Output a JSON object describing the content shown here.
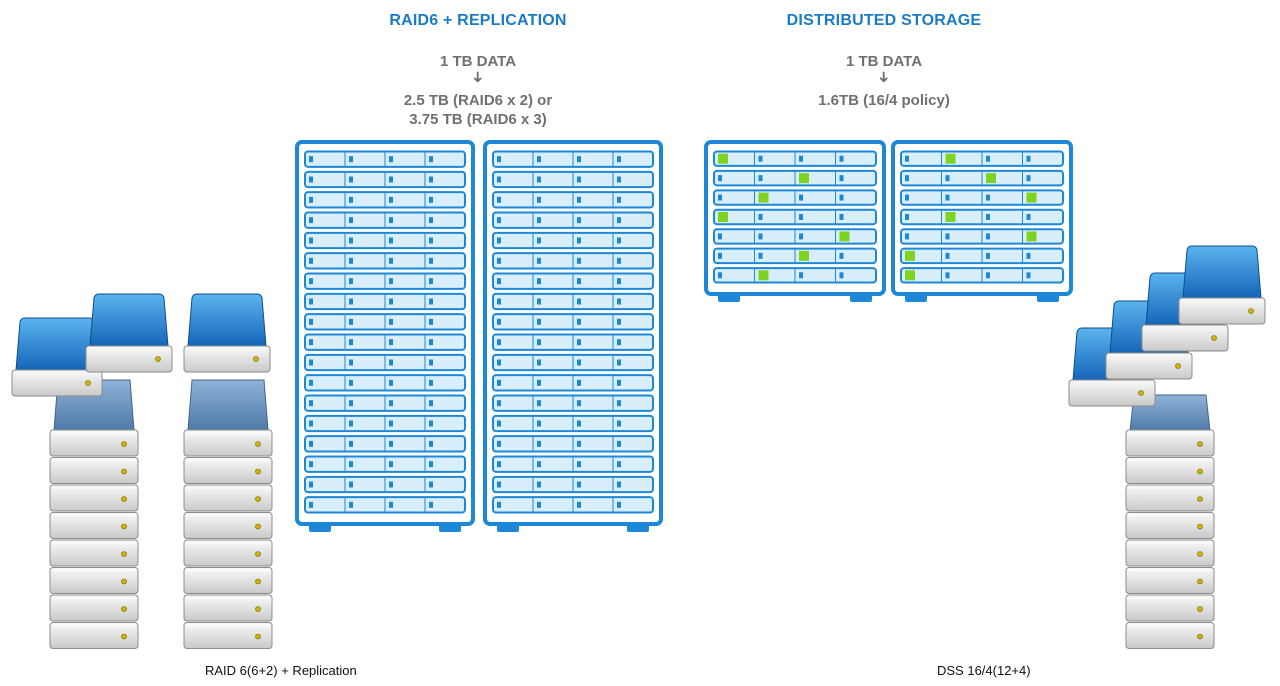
{
  "left": {
    "title": "RAID6 + REPLICATION",
    "data_label": "1 TB DATA",
    "arrow": "➜",
    "result_line1": "2.5 TB (RAID6 x 2) or",
    "result_line2": "3.75 TB (RAID6 x 3)",
    "caption": "RAID 6(6+2) + Replication"
  },
  "right": {
    "title": "DISTRIBUTED STORAGE",
    "data_label": "1 TB DATA",
    "arrow": "➜",
    "result_line1": "1.6TB (16/4 policy)",
    "caption": "DSS 16/4(12+4)"
  },
  "colors": {
    "title_blue": "#1a7cc6",
    "rack_blue": "#1e88d8",
    "slot_light": "#d8eefb",
    "active_green": "#7ed321",
    "text_gray": "#707070"
  },
  "icons": [
    "rack-icon",
    "hard-drive-icon",
    "arrow-down-icon"
  ]
}
